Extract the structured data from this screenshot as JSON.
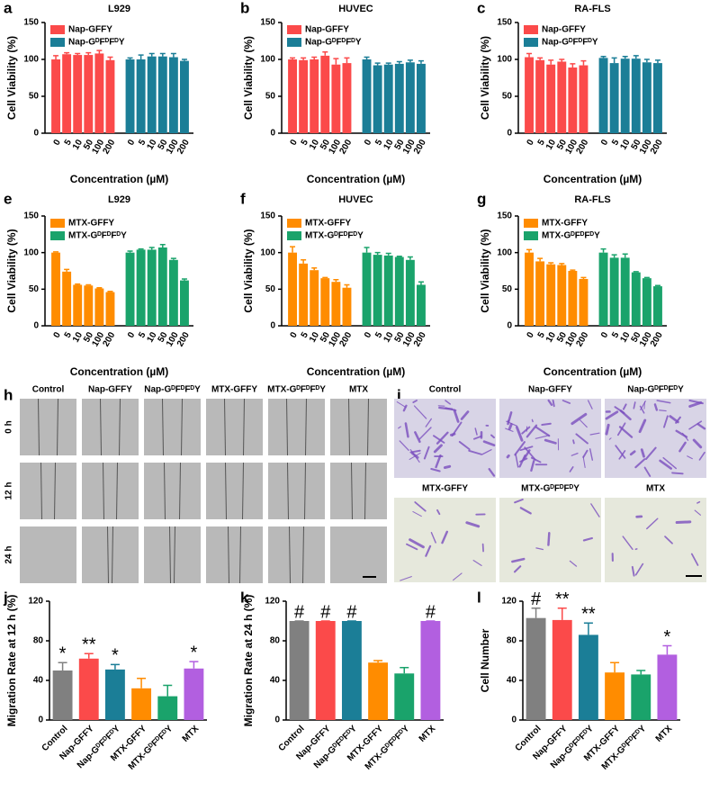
{
  "chart_data": [
    {
      "type": "bar",
      "panel": "a",
      "title": "L929",
      "xlabel": "Concentration (µM)",
      "ylabel": "Cell Viability (%)",
      "legend": "upper left",
      "categories": [
        "0",
        "5",
        "10",
        "50",
        "100",
        "200"
      ],
      "ylim": [
        0,
        150
      ],
      "yticks": [
        0,
        50,
        100,
        150
      ],
      "series": [
        {
          "name": "Nap-GFFY",
          "color": "#fb4a4a",
          "values": [
            100,
            107,
            106,
            106,
            108,
            99
          ],
          "errors": [
            5,
            2,
            2,
            3,
            4,
            4
          ]
        },
        {
          "name": "Nap-GᴰFᴰFᴰY",
          "color": "#1b7e97",
          "values": [
            100,
            100,
            104,
            104,
            103,
            98
          ],
          "errors": [
            2,
            6,
            4,
            4,
            5,
            2
          ]
        }
      ]
    },
    {
      "type": "bar",
      "panel": "b",
      "title": "HUVEC",
      "xlabel": "Concentration (µM)",
      "ylabel": "Cell Viability (%)",
      "legend": "upper left",
      "categories": [
        "0",
        "5",
        "10",
        "50",
        "100",
        "200"
      ],
      "ylim": [
        0,
        150
      ],
      "yticks": [
        0,
        50,
        100,
        150
      ],
      "series": [
        {
          "name": "Nap-GFFY",
          "color": "#fb4a4a",
          "values": [
            100,
            99,
            100,
            105,
            93,
            95
          ],
          "errors": [
            2,
            3,
            3,
            5,
            8,
            7
          ]
        },
        {
          "name": "Nap-GᴰFᴰFᴰY",
          "color": "#1b7e97",
          "values": [
            100,
            92,
            93,
            94,
            96,
            94
          ],
          "errors": [
            3,
            3,
            2,
            3,
            3,
            4
          ]
        }
      ]
    },
    {
      "type": "bar",
      "panel": "c",
      "title": "RA-FLS",
      "xlabel": "Concentration (µM)",
      "ylabel": "Cell Viability (%)",
      "legend": "upper left",
      "categories": [
        "0",
        "5",
        "10",
        "50",
        "100",
        "200"
      ],
      "ylim": [
        0,
        150
      ],
      "yticks": [
        0,
        50,
        100,
        150
      ],
      "series": [
        {
          "name": "Nap-GFFY",
          "color": "#fb4a4a",
          "values": [
            103,
            99,
            93,
            97,
            89,
            92
          ],
          "errors": [
            5,
            3,
            6,
            3,
            5,
            6
          ]
        },
        {
          "name": "Nap-GᴰFᴰFᴰY",
          "color": "#1b7e97",
          "values": [
            102,
            95,
            101,
            101,
            96,
            95
          ],
          "errors": [
            2,
            7,
            3,
            4,
            4,
            4
          ]
        }
      ]
    },
    {
      "type": "bar",
      "panel": "e",
      "title": "L929",
      "xlabel": "Concentration (µM)",
      "ylabel": "Cell Viability (%)",
      "legend": "upper left",
      "categories": [
        "0",
        "5",
        "10",
        "50",
        "100",
        "200"
      ],
      "ylim": [
        0,
        150
      ],
      "yticks": [
        0,
        50,
        100,
        150
      ],
      "series": [
        {
          "name": "MTX-GFFY",
          "color": "#ff8c00",
          "values": [
            100,
            74,
            56,
            55,
            51,
            46
          ],
          "errors": [
            1,
            3,
            1,
            1,
            1,
            1
          ]
        },
        {
          "name": "MTX-GᴰFᴰFᴰY",
          "color": "#1aa36b",
          "values": [
            100,
            104,
            104,
            107,
            90,
            62
          ],
          "errors": [
            2,
            1,
            3,
            4,
            2,
            2
          ]
        }
      ]
    },
    {
      "type": "bar",
      "panel": "f",
      "title": "HUVEC",
      "xlabel": "Concentration (µM)",
      "ylabel": "Cell Viability (%)",
      "legend": "upper left",
      "categories": [
        "0",
        "5",
        "10",
        "50",
        "100",
        "200"
      ],
      "ylim": [
        0,
        150
      ],
      "yticks": [
        0,
        50,
        100,
        150
      ],
      "series": [
        {
          "name": "MTX-GFFY",
          "color": "#ff8c00",
          "values": [
            100,
            85,
            76,
            65,
            60,
            52
          ],
          "errors": [
            8,
            5,
            3,
            1,
            3,
            4
          ]
        },
        {
          "name": "MTX-GᴰFᴰFᴰY",
          "color": "#1aa36b",
          "values": [
            100,
            97,
            96,
            94,
            90,
            56
          ],
          "errors": [
            7,
            3,
            3,
            1,
            4,
            4
          ]
        }
      ]
    },
    {
      "type": "bar",
      "panel": "g",
      "title": "RA-FLS",
      "xlabel": "Concentration (µM)",
      "ylabel": "Cell Viability (%)",
      "legend": "upper left",
      "categories": [
        "0",
        "5",
        "10",
        "50",
        "100",
        "200"
      ],
      "ylim": [
        0,
        150
      ],
      "yticks": [
        0,
        50,
        100,
        150
      ],
      "series": [
        {
          "name": "MTX-GFFY",
          "color": "#ff8c00",
          "values": [
            100,
            88,
            84,
            83,
            75,
            64
          ],
          "errors": [
            4,
            4,
            2,
            2,
            1,
            2
          ]
        },
        {
          "name": "MTX-GᴰFᴰFᴰY",
          "color": "#1aa36b",
          "values": [
            100,
            93,
            93,
            73,
            65,
            54
          ],
          "errors": [
            5,
            4,
            5,
            1,
            1,
            1
          ]
        }
      ]
    },
    {
      "type": "bar",
      "panel": "j",
      "ylabel": "Migration Rate at 12 h (%)",
      "categories": [
        "Control",
        "Nap-GFFY",
        "Nap-GᴰFᴰFᴰY",
        "MTX-GFFY",
        "MTX-GᴰFᴰFᴰY",
        "MTX"
      ],
      "values": [
        50,
        62,
        51,
        32,
        24,
        52
      ],
      "errors": [
        8,
        5,
        5,
        10,
        11,
        7
      ],
      "annotations": [
        "*",
        "**",
        "*",
        null,
        null,
        "*"
      ],
      "colors": [
        "#808080",
        "#fb4a4a",
        "#1b7e97",
        "#ff8c00",
        "#1aa36b",
        "#b25fe0"
      ],
      "ylim": [
        0,
        120
      ],
      "yticks": [
        0,
        40,
        80,
        120
      ]
    },
    {
      "type": "bar",
      "panel": "k",
      "ylabel": "Migration Rate at 24 h (%)",
      "categories": [
        "Control",
        "Nap-GFFY",
        "Nap-GᴰFᴰFᴰY",
        "MTX-GFFY",
        "MTX-GᴰFᴰFᴰY",
        "MTX"
      ],
      "values": [
        100,
        100,
        100,
        58,
        47,
        100
      ],
      "errors": [
        0,
        0,
        0,
        2,
        6,
        0
      ],
      "annotations": [
        "#",
        "#",
        "#",
        null,
        null,
        "#"
      ],
      "colors": [
        "#808080",
        "#fb4a4a",
        "#1b7e97",
        "#ff8c00",
        "#1aa36b",
        "#b25fe0"
      ],
      "ylim": [
        0,
        120
      ],
      "yticks": [
        0,
        40,
        80,
        120
      ]
    },
    {
      "type": "bar",
      "panel": "l",
      "ylabel": "Cell Number",
      "categories": [
        "Control",
        "Nap-GFFY",
        "Nap-GᴰFᴰFᴰY",
        "MTX-GFFY",
        "MTX-GᴰFᴰFᴰY",
        "MTX"
      ],
      "values": [
        103,
        101,
        86,
        48,
        46,
        66
      ],
      "errors": [
        10,
        12,
        12,
        10,
        4,
        9
      ],
      "annotations": [
        "#",
        "**",
        "**",
        null,
        null,
        "*"
      ],
      "colors": [
        "#808080",
        "#fb4a4a",
        "#1b7e97",
        "#ff8c00",
        "#1aa36b",
        "#b25fe0"
      ],
      "ylim": [
        0,
        120
      ],
      "yticks": [
        0,
        40,
        80,
        120
      ]
    }
  ],
  "images": {
    "h": {
      "panel": "h",
      "columns": [
        "Control",
        "Nap-GFFY",
        "Nap-GᴰFᴰFᴰY",
        "MTX-GFFY",
        "MTX-GᴰFᴰFᴰY",
        "MTX"
      ],
      "rows": [
        "0 h",
        "12 h",
        "24 h"
      ]
    },
    "i": {
      "panel": "i",
      "labels": [
        "Control",
        "Nap-GFFY",
        "Nap-GᴰFᴰFᴰY",
        "MTX-GFFY",
        "MTX-GᴰFᴰFᴰY",
        "MTX"
      ]
    }
  }
}
